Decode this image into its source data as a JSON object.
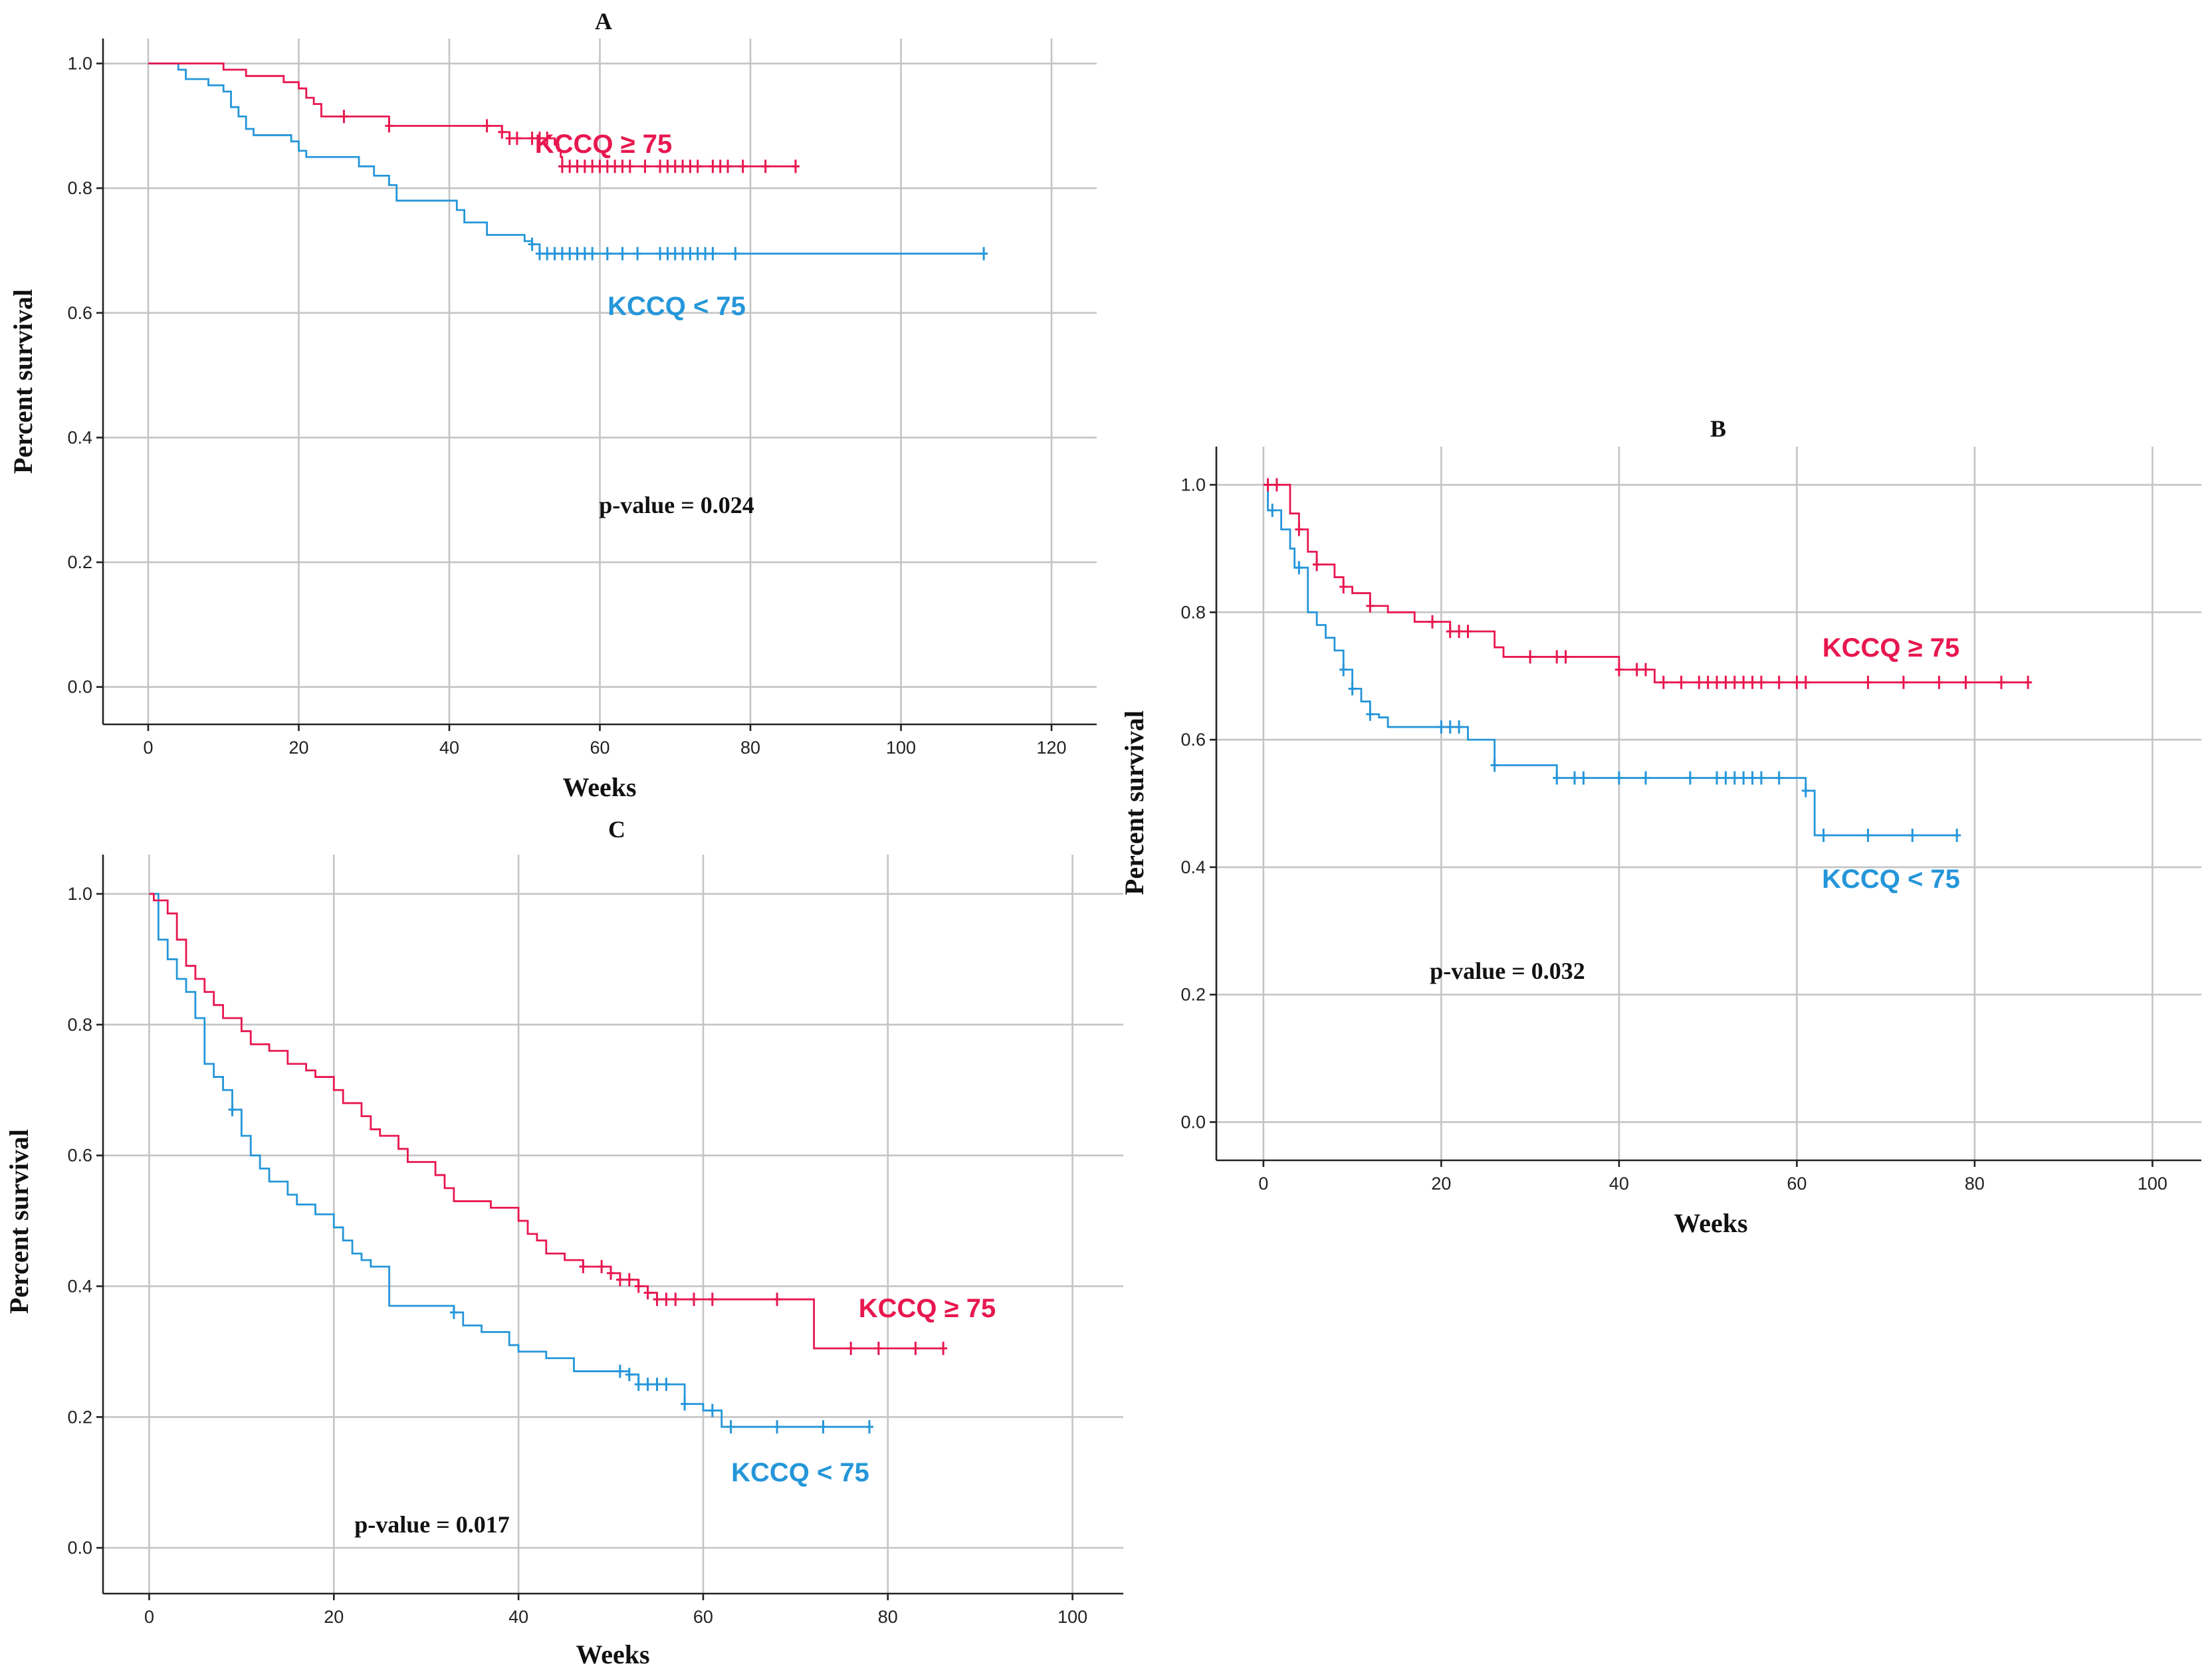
{
  "chart_data": [
    {
      "type": "line",
      "panel": "A",
      "title": "A",
      "xlabel": "Weeks",
      "ylabel": "Percent survival",
      "xlim": [
        -6,
        126
      ],
      "ylim": [
        -0.06,
        1.04
      ],
      "xticks": [
        0,
        20,
        40,
        60,
        80,
        100,
        120
      ],
      "xtick_labels": [
        "0",
        "20",
        "40",
        "60",
        "80",
        "100",
        "120"
      ],
      "yticks": [
        0,
        0.2,
        0.4,
        0.6,
        0.8,
        1.0
      ],
      "ytick_labels": [
        "0.0",
        "0.2",
        "0.4",
        "0.6",
        "0.8",
        "1.0"
      ],
      "p_value_text": "p-value = 0.024",
      "series": [
        {
          "name": "KCCQ ≥ 75",
          "color": "#e8174f",
          "steps": [
            [
              0,
              1.0
            ],
            [
              10,
              0.99
            ],
            [
              13,
              0.98
            ],
            [
              18,
              0.97
            ],
            [
              20,
              0.96
            ],
            [
              21,
              0.945
            ],
            [
              22,
              0.935
            ],
            [
              23,
              0.915
            ],
            [
              32,
              0.9
            ],
            [
              47,
              0.89
            ],
            [
              48,
              0.88
            ],
            [
              54,
              0.87
            ],
            [
              54.5,
              0.86
            ],
            [
              54.8,
              0.85
            ],
            [
              55,
              0.835
            ]
          ],
          "end_x": 86,
          "censor_x": [
            26,
            32,
            45,
            47,
            48,
            49,
            51,
            52,
            53,
            55,
            56,
            57,
            58,
            59,
            60,
            61,
            62,
            63,
            64,
            66,
            68,
            69,
            70,
            71,
            72,
            73,
            75,
            76,
            77,
            79,
            82,
            86
          ]
        },
        {
          "name": "KCCQ < 75",
          "color": "#2596d9",
          "steps": [
            [
              0,
              1.0
            ],
            [
              4,
              0.99
            ],
            [
              5,
              0.975
            ],
            [
              8,
              0.965
            ],
            [
              10,
              0.955
            ],
            [
              11,
              0.93
            ],
            [
              12,
              0.915
            ],
            [
              13,
              0.895
            ],
            [
              14,
              0.885
            ],
            [
              19,
              0.875
            ],
            [
              20,
              0.86
            ],
            [
              21,
              0.85
            ],
            [
              28,
              0.835
            ],
            [
              30,
              0.82
            ],
            [
              32,
              0.805
            ],
            [
              33,
              0.78
            ],
            [
              41,
              0.765
            ],
            [
              42,
              0.745
            ],
            [
              45,
              0.725
            ],
            [
              50,
              0.715
            ],
            [
              51,
              0.71
            ],
            [
              52,
              0.695
            ]
          ],
          "end_x": 111,
          "censor_x": [
            51,
            52,
            53,
            54,
            55,
            56,
            57,
            58,
            59,
            61,
            63,
            65,
            68,
            69,
            70,
            71,
            72,
            73,
            74,
            75,
            78,
            111
          ]
        }
      ]
    },
    {
      "type": "line",
      "panel": "B",
      "title": "B",
      "xlabel": "Weeks",
      "ylabel": "Percent survival",
      "xlim": [
        -5.3,
        105.5
      ],
      "ylim": [
        -0.06,
        1.06
      ],
      "xticks": [
        0,
        20,
        40,
        60,
        80,
        100
      ],
      "xtick_labels": [
        "0",
        "20",
        "40",
        "60",
        "80",
        "100"
      ],
      "yticks": [
        0,
        0.2,
        0.4,
        0.6,
        0.8,
        1.0
      ],
      "ytick_labels": [
        "0.0",
        "0.2",
        "0.4",
        "0.6",
        "0.8",
        "1.0"
      ],
      "p_value_text": "p-value = 0.032",
      "series": [
        {
          "name": "KCCQ ≥ 75",
          "color": "#e8174f",
          "steps": [
            [
              0,
              1.0
            ],
            [
              3,
              0.955
            ],
            [
              4,
              0.93
            ],
            [
              5,
              0.895
            ],
            [
              6,
              0.875
            ],
            [
              8,
              0.855
            ],
            [
              9,
              0.84
            ],
            [
              10,
              0.83
            ],
            [
              12,
              0.81
            ],
            [
              14,
              0.8
            ],
            [
              17,
              0.785
            ],
            [
              21,
              0.77
            ],
            [
              26,
              0.745
            ],
            [
              27,
              0.73
            ],
            [
              40,
              0.71
            ],
            [
              44,
              0.69
            ]
          ],
          "end_x": 86,
          "censor_x": [
            0.5,
            1.5,
            4,
            6,
            9,
            12,
            19,
            21,
            22,
            23,
            30,
            33,
            34,
            40,
            42,
            43,
            45,
            47,
            49,
            50,
            51,
            52,
            53,
            54,
            55,
            56,
            58,
            60,
            61,
            68,
            72,
            76,
            79,
            83,
            86
          ]
        },
        {
          "name": "KCCQ < 75",
          "color": "#2596d9",
          "steps": [
            [
              0,
              1.0
            ],
            [
              0.5,
              0.96
            ],
            [
              2,
              0.93
            ],
            [
              3,
              0.9
            ],
            [
              3.5,
              0.87
            ],
            [
              5,
              0.8
            ],
            [
              6,
              0.78
            ],
            [
              7,
              0.76
            ],
            [
              8,
              0.74
            ],
            [
              9,
              0.71
            ],
            [
              10,
              0.68
            ],
            [
              11,
              0.66
            ],
            [
              12,
              0.64
            ],
            [
              13,
              0.635
            ],
            [
              14,
              0.62
            ],
            [
              23,
              0.6
            ],
            [
              26,
              0.56
            ],
            [
              33,
              0.54
            ],
            [
              61,
              0.52
            ],
            [
              62,
              0.45
            ]
          ],
          "end_x": 78,
          "censor_x": [
            1,
            4,
            9,
            10,
            12,
            20,
            21,
            22,
            26,
            33,
            35,
            36,
            40,
            43,
            48,
            51,
            52,
            53,
            54,
            55,
            56,
            58,
            61,
            63,
            68,
            73,
            78
          ]
        }
      ]
    },
    {
      "type": "line",
      "panel": "C",
      "title": "C",
      "xlabel": "Weeks",
      "ylabel": "Percent survival",
      "xlim": [
        -5,
        105.5
      ],
      "ylim": [
        -0.07,
        1.06
      ],
      "xticks": [
        0,
        20,
        40,
        60,
        80,
        100
      ],
      "xtick_labels": [
        "0",
        "20",
        "40",
        "60",
        "80",
        "100"
      ],
      "yticks": [
        0,
        0.2,
        0.4,
        0.6,
        0.8,
        1.0
      ],
      "ytick_labels": [
        "0.0",
        "0.2",
        "0.4",
        "0.6",
        "0.8",
        "1.0"
      ],
      "p_value_text": "p-value = 0.017",
      "series": [
        {
          "name": "KCCQ ≥ 75",
          "color": "#e8174f",
          "steps": [
            [
              0,
              1.0
            ],
            [
              0.5,
              0.99
            ],
            [
              2,
              0.97
            ],
            [
              3,
              0.93
            ],
            [
              4,
              0.89
            ],
            [
              5,
              0.87
            ],
            [
              6,
              0.85
            ],
            [
              7,
              0.83
            ],
            [
              8,
              0.81
            ],
            [
              10,
              0.79
            ],
            [
              11,
              0.77
            ],
            [
              13,
              0.76
            ],
            [
              15,
              0.74
            ],
            [
              17,
              0.73
            ],
            [
              18,
              0.72
            ],
            [
              20,
              0.7
            ],
            [
              21,
              0.68
            ],
            [
              23,
              0.66
            ],
            [
              24,
              0.64
            ],
            [
              25,
              0.63
            ],
            [
              27,
              0.61
            ],
            [
              28,
              0.59
            ],
            [
              31,
              0.57
            ],
            [
              32,
              0.55
            ],
            [
              33,
              0.53
            ],
            [
              37,
              0.52
            ],
            [
              40,
              0.5
            ],
            [
              41,
              0.48
            ],
            [
              42,
              0.47
            ],
            [
              43,
              0.45
            ],
            [
              45,
              0.44
            ],
            [
              47,
              0.43
            ],
            [
              50,
              0.42
            ],
            [
              51,
              0.41
            ],
            [
              53,
              0.4
            ],
            [
              54,
              0.39
            ],
            [
              55,
              0.38
            ],
            [
              72,
              0.305
            ]
          ],
          "end_x": 86,
          "censor_x": [
            47,
            49,
            50,
            51,
            52,
            53,
            54,
            55,
            56,
            57,
            59,
            61,
            68,
            76,
            79,
            83,
            86
          ]
        },
        {
          "name": "KCCQ < 75",
          "color": "#2596d9",
          "steps": [
            [
              0,
              1.0
            ],
            [
              1,
              0.93
            ],
            [
              2,
              0.9
            ],
            [
              3,
              0.87
            ],
            [
              4,
              0.85
            ],
            [
              5,
              0.81
            ],
            [
              6,
              0.74
            ],
            [
              7,
              0.72
            ],
            [
              8,
              0.7
            ],
            [
              9,
              0.67
            ],
            [
              10,
              0.63
            ],
            [
              11,
              0.6
            ],
            [
              12,
              0.58
            ],
            [
              13,
              0.56
            ],
            [
              15,
              0.54
            ],
            [
              16,
              0.525
            ],
            [
              18,
              0.51
            ],
            [
              20,
              0.49
            ],
            [
              21,
              0.47
            ],
            [
              22,
              0.45
            ],
            [
              23,
              0.44
            ],
            [
              24,
              0.43
            ],
            [
              26,
              0.37
            ],
            [
              33,
              0.36
            ],
            [
              34,
              0.34
            ],
            [
              36,
              0.33
            ],
            [
              39,
              0.31
            ],
            [
              40,
              0.3
            ],
            [
              43,
              0.29
            ],
            [
              46,
              0.27
            ],
            [
              52,
              0.265
            ],
            [
              53,
              0.25
            ],
            [
              58,
              0.22
            ],
            [
              60,
              0.21
            ],
            [
              62,
              0.185
            ]
          ],
          "end_x": 78,
          "censor_x": [
            9,
            33,
            51,
            52,
            53,
            54,
            55,
            56,
            58,
            61,
            63,
            68,
            73,
            78
          ]
        }
      ]
    }
  ]
}
